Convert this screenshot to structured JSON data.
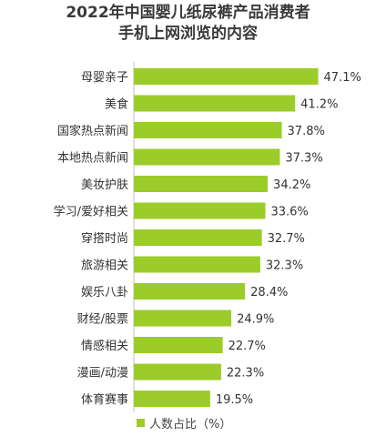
{
  "chart_data": {
    "type": "bar",
    "orientation": "horizontal",
    "title": [
      "2022年中国婴儿纸尿裤产品消费者",
      "手机上网浏览的内容"
    ],
    "categories": [
      "母婴亲子",
      "美食",
      "国家热点新闻",
      "本地热点新闻",
      "美妆护肤",
      "学习/爱好相关",
      "穿搭时尚",
      "旅游相关",
      "娱乐八卦",
      "财经/股票",
      "情感相关",
      "漫画/动漫",
      "体育赛事"
    ],
    "values": [
      47.1,
      41.2,
      37.8,
      37.3,
      34.2,
      33.6,
      32.7,
      32.3,
      28.4,
      24.9,
      22.7,
      22.3,
      19.5
    ],
    "value_labels": [
      "47.1%",
      "41.2%",
      "37.8%",
      "37.3%",
      "34.2%",
      "33.6%",
      "32.7%",
      "32.3%",
      "28.4%",
      "24.9%",
      "22.7%",
      "22.3%",
      "19.5%"
    ],
    "series": [
      {
        "name": "人数占比（%）"
      }
    ],
    "bar_color": "#9ccc29",
    "legend_position": "bottom"
  }
}
